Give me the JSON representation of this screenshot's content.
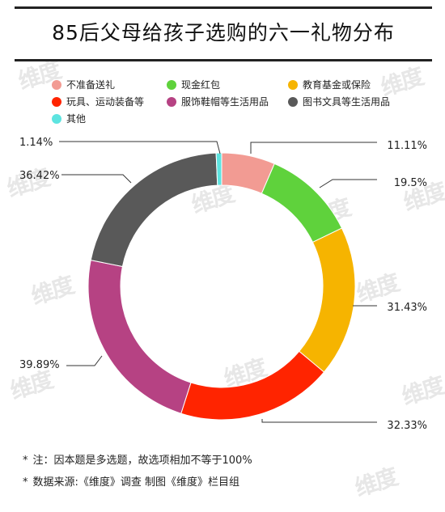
{
  "title": "85后父母给孩子选购的六一礼物分布",
  "watermark_text": "维度",
  "legend": [
    {
      "label": "不准备送礼",
      "color": "#f29b93"
    },
    {
      "label": "现金红包",
      "color": "#5fd23c"
    },
    {
      "label": "教育基金或保险",
      "color": "#f6b400"
    },
    {
      "label": "玩具、运动装备等",
      "color": "#ff2400"
    },
    {
      "label": "服饰鞋帽等生活用品",
      "color": "#b64283"
    },
    {
      "label": "图书文具等生活用品",
      "color": "#595959"
    },
    {
      "label": "其他",
      "color": "#5de4e0"
    }
  ],
  "chart_data": {
    "type": "pie",
    "style": "donut",
    "title": "85后父母给孩子选购的六一礼物分布",
    "categories": [
      "不准备送礼",
      "现金红包",
      "教育基金或保险",
      "玩具、运动装备等",
      "服饰鞋帽等生活用品",
      "图书文具等生活用品",
      "其他"
    ],
    "values": [
      11.11,
      19.5,
      31.43,
      32.33,
      39.89,
      36.42,
      1.14
    ],
    "value_labels": [
      "11.11%",
      "19.5%",
      "31.43%",
      "32.33%",
      "39.89%",
      "36.42%",
      "1.14%"
    ],
    "colors": [
      "#f29b93",
      "#5fd23c",
      "#f6b400",
      "#ff2400",
      "#b64283",
      "#595959",
      "#5de4e0"
    ],
    "legend_position": "top"
  },
  "notes": [
    {
      "star": "*",
      "text": "注：因本题是多选题，故选项相加不等于100%"
    },
    {
      "star": "*",
      "text": "数据来源:《维度》调查  制图《维度》栏目组"
    }
  ]
}
